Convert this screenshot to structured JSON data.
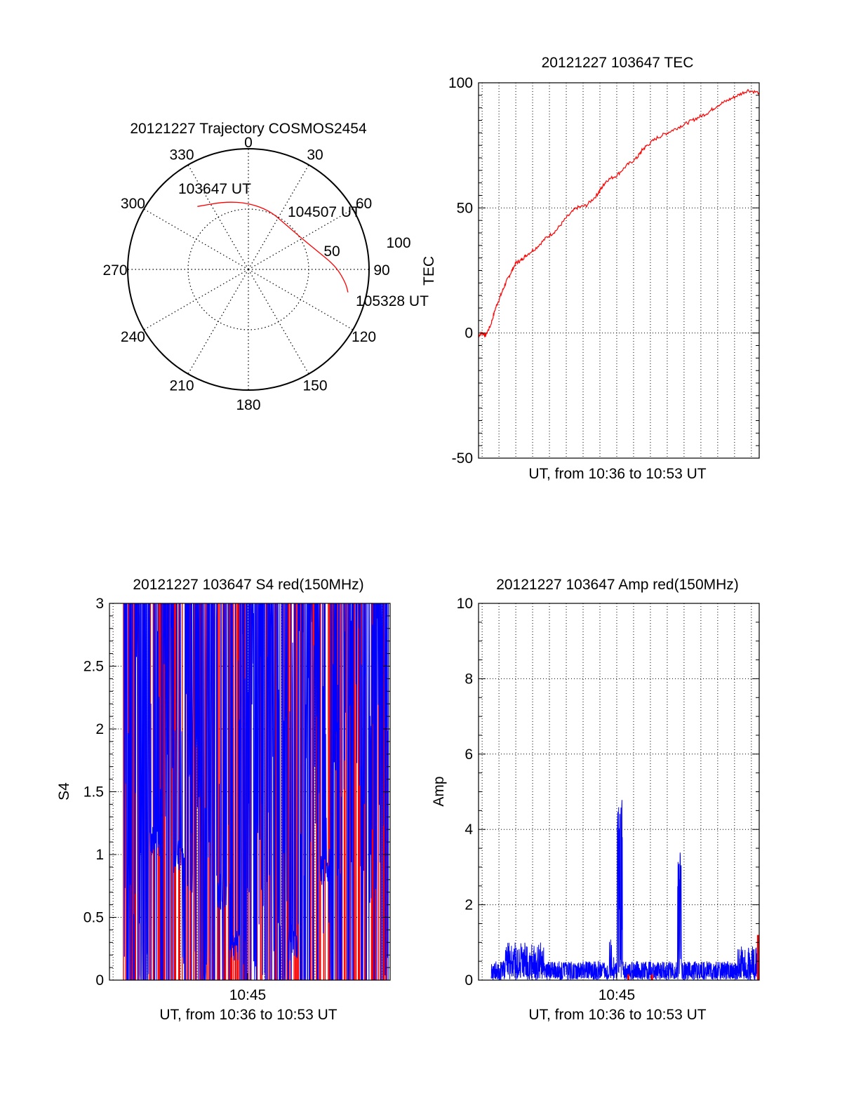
{
  "chart_data": [
    {
      "id": "polar",
      "type": "polar-trajectory",
      "title": "20121227 Trajectory COSMOS2454",
      "azimuth_labels": [
        "0",
        "30",
        "60",
        "90",
        "120",
        "150",
        "180",
        "210",
        "240",
        "270",
        "300",
        "330"
      ],
      "ring_labels": [
        "50",
        "100"
      ],
      "radius_max": 100,
      "annotations": [
        {
          "text": "103647 UT",
          "az": 324,
          "el": 28
        },
        {
          "text": "104507 UT",
          "az": 60,
          "el": 52
        },
        {
          "text": "105328 UT",
          "az": 103,
          "el": 12
        }
      ],
      "trajectory": [
        {
          "az": 321,
          "el": 29
        },
        {
          "az": 341,
          "el": 36
        },
        {
          "az": 0,
          "el": 40
        },
        {
          "az": 20,
          "el": 43
        },
        {
          "az": 40,
          "el": 46
        },
        {
          "az": 58,
          "el": 44
        },
        {
          "az": 74,
          "el": 37
        },
        {
          "az": 88,
          "el": 24
        },
        {
          "az": 98,
          "el": 16
        },
        {
          "az": 103,
          "el": 13
        }
      ],
      "line_color": "#ff0000"
    },
    {
      "id": "tec",
      "type": "line",
      "title": "20121227 103647 TEC",
      "xlabel": "UT, from 10:36 to 10:53 UT",
      "ylabel": "TEC",
      "ylim": [
        -50,
        100
      ],
      "yticks": [
        "-50",
        "0",
        "50",
        "100"
      ],
      "xlim": [
        10.6131,
        10.8911
      ],
      "color": "#ff0000",
      "series": [
        {
          "x": [
            10.6131,
            10.6167,
            10.62,
            10.625,
            10.63,
            10.635,
            10.64,
            10.645,
            10.65,
            10.655,
            10.66,
            10.67,
            10.68,
            10.69,
            10.7,
            10.71,
            10.72,
            10.73,
            10.735,
            10.74,
            10.75,
            10.76,
            10.77,
            10.775,
            10.78,
            10.79,
            10.8,
            10.81,
            10.82,
            10.83,
            10.84,
            10.85,
            10.86,
            10.87,
            10.88,
            10.8911
          ],
          "values": [
            -1,
            0,
            -1,
            3,
            10,
            15,
            20,
            24,
            28,
            29,
            31,
            34,
            38,
            41,
            46,
            50,
            51,
            55,
            58,
            61,
            63,
            67,
            70,
            73,
            75,
            78,
            80,
            82,
            84,
            86,
            88,
            91,
            93,
            95,
            97,
            96
          ]
        }
      ]
    },
    {
      "id": "s4",
      "type": "line",
      "title": "20121227 103647 S4 red(150MHz)",
      "xlabel": "UT, from 10:36 to 10:53 UT",
      "ylabel": "S4",
      "ylim": [
        0,
        3
      ],
      "yticks": [
        "0",
        "0.5",
        "1",
        "1.5",
        "2",
        "2.5",
        "3"
      ],
      "xticks": [
        "10:45"
      ],
      "xlim": [
        10.6131,
        10.8911
      ],
      "series": [
        {
          "name": "",
          "color": "#ff0000"
        },
        {
          "name": "",
          "color": "#0000ff"
        }
      ]
    },
    {
      "id": "amp",
      "type": "line",
      "title": "20121227 103647 Amp red(150MHz)",
      "xlabel": "UT, from 10:36 to 10:53 UT",
      "ylabel": "Amp",
      "ylim": [
        0,
        10
      ],
      "yticks": [
        "0",
        "2",
        "4",
        "6",
        "8",
        "10"
      ],
      "xticks": [
        "10:45"
      ],
      "xlim": [
        10.6131,
        10.8911
      ],
      "series": [
        {
          "name": "",
          "color": "#0000ff"
        },
        {
          "name": "",
          "color": "#ff0000"
        }
      ]
    }
  ]
}
